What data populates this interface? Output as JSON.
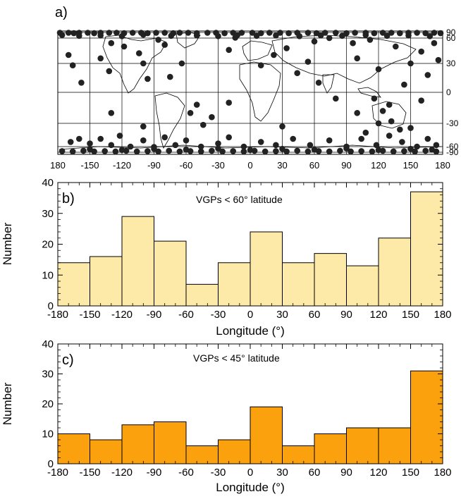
{
  "chart_data": [
    {
      "type": "scatter",
      "panel_label": "a)",
      "description_kind": "world map with VGP locations",
      "xlim": [
        -180,
        180
      ],
      "ylim": [
        -90,
        90
      ],
      "x_ticks": [
        "180",
        "-150",
        "-120",
        "-90",
        "-60",
        "-30",
        "0",
        "30",
        "60",
        "90",
        "120",
        "150",
        "180"
      ],
      "y_ticks": [
        {
          "value": 90,
          "label": "90"
        },
        {
          "value": 60,
          "label": "60"
        },
        {
          "value": 30,
          "label": "30"
        },
        {
          "value": 0,
          "label": "0"
        },
        {
          "value": -30,
          "label": "-30"
        },
        {
          "value": -60,
          "label": "-60"
        },
        {
          "value": -90,
          "label": "-90"
        }
      ],
      "marker_color": "#222222",
      "points": [
        [
          -178,
          88
        ],
        [
          -170,
          88
        ],
        [
          -165,
          86
        ],
        [
          -160,
          88
        ],
        [
          -152,
          88
        ],
        [
          -146,
          86
        ],
        [
          -140,
          88
        ],
        [
          -132,
          88
        ],
        [
          -125,
          88
        ],
        [
          -118,
          86
        ],
        [
          -110,
          88
        ],
        [
          -102,
          88
        ],
        [
          -96,
          86
        ],
        [
          -88,
          88
        ],
        [
          -80,
          88
        ],
        [
          -72,
          86
        ],
        [
          -66,
          88
        ],
        [
          -58,
          88
        ],
        [
          -50,
          86
        ],
        [
          -40,
          88
        ],
        [
          -32,
          88
        ],
        [
          -24,
          86
        ],
        [
          -16,
          88
        ],
        [
          -8,
          88
        ],
        [
          2,
          88
        ],
        [
          10,
          86
        ],
        [
          18,
          88
        ],
        [
          28,
          88
        ],
        [
          36,
          86
        ],
        [
          44,
          88
        ],
        [
          54,
          88
        ],
        [
          62,
          86
        ],
        [
          70,
          88
        ],
        [
          80,
          88
        ],
        [
          90,
          86
        ],
        [
          98,
          88
        ],
        [
          108,
          88
        ],
        [
          116,
          86
        ],
        [
          124,
          88
        ],
        [
          132,
          88
        ],
        [
          140,
          86
        ],
        [
          148,
          88
        ],
        [
          156,
          88
        ],
        [
          164,
          86
        ],
        [
          172,
          88
        ],
        [
          178,
          86
        ],
        [
          -176,
          76
        ],
        [
          -160,
          72
        ],
        [
          -140,
          74
        ],
        [
          -120,
          70
        ],
        [
          -100,
          78
        ],
        [
          -74,
          72
        ],
        [
          -50,
          74
        ],
        [
          -30,
          70
        ],
        [
          -12,
          76
        ],
        [
          6,
          72
        ],
        [
          24,
          74
        ],
        [
          46,
          70
        ],
        [
          66,
          74
        ],
        [
          86,
          72
        ],
        [
          108,
          76
        ],
        [
          128,
          72
        ],
        [
          148,
          74
        ],
        [
          168,
          70
        ],
        [
          -170,
          40
        ],
        [
          -166,
          28
        ],
        [
          -158,
          10
        ],
        [
          -140,
          36
        ],
        [
          -132,
          22
        ],
        [
          -130,
          54
        ],
        [
          -118,
          50
        ],
        [
          -104,
          42
        ],
        [
          -100,
          30
        ],
        [
          -96,
          14
        ],
        [
          -86,
          58
        ],
        [
          -80,
          52
        ],
        [
          -75,
          16
        ],
        [
          -64,
          30
        ],
        [
          -56,
          -20
        ],
        [
          -50,
          -12
        ],
        [
          -44,
          -32
        ],
        [
          -36,
          -24
        ],
        [
          -20,
          46
        ],
        [
          -14,
          62
        ],
        [
          10,
          28
        ],
        [
          22,
          40
        ],
        [
          34,
          48
        ],
        [
          44,
          20
        ],
        [
          54,
          32
        ],
        [
          60,
          56
        ],
        [
          64,
          10
        ],
        [
          74,
          60
        ],
        [
          80,
          -6
        ],
        [
          96,
          54
        ],
        [
          100,
          36
        ],
        [
          112,
          58
        ],
        [
          120,
          24
        ],
        [
          136,
          50
        ],
        [
          144,
          8
        ],
        [
          150,
          30
        ],
        [
          160,
          44
        ],
        [
          166,
          18
        ],
        [
          172,
          54
        ],
        [
          176,
          34
        ],
        [
          -168,
          -54
        ],
        [
          -160,
          -50
        ],
        [
          -150,
          -56
        ],
        [
          -140,
          -50
        ],
        [
          -130,
          -58
        ],
        [
          -122,
          -46
        ],
        [
          -112,
          -60
        ],
        [
          -100,
          -52
        ],
        [
          -90,
          -62
        ],
        [
          -80,
          -48
        ],
        [
          -70,
          -58
        ],
        [
          -60,
          -52
        ],
        [
          -46,
          -60
        ],
        [
          -30,
          -56
        ],
        [
          -20,
          -48
        ],
        [
          -6,
          -60
        ],
        [
          10,
          -54
        ],
        [
          24,
          -58
        ],
        [
          40,
          -50
        ],
        [
          56,
          -58
        ],
        [
          74,
          -52
        ],
        [
          90,
          -60
        ],
        [
          104,
          -50
        ],
        [
          118,
          -58
        ],
        [
          130,
          -46
        ],
        [
          142,
          -54
        ],
        [
          156,
          -60
        ],
        [
          166,
          -50
        ],
        [
          174,
          -58
        ],
        [
          -176,
          -84
        ],
        [
          -166,
          -86
        ],
        [
          -156,
          -82
        ],
        [
          -146,
          -86
        ],
        [
          -136,
          -84
        ],
        [
          -126,
          -86
        ],
        [
          -116,
          -82
        ],
        [
          -106,
          -86
        ],
        [
          -96,
          -84
        ],
        [
          -86,
          -86
        ],
        [
          -76,
          -82
        ],
        [
          -66,
          -86
        ],
        [
          -56,
          -84
        ],
        [
          -46,
          -86
        ],
        [
          -36,
          -82
        ],
        [
          -26,
          -86
        ],
        [
          -16,
          -84
        ],
        [
          -6,
          -86
        ],
        [
          4,
          -82
        ],
        [
          14,
          -86
        ],
        [
          24,
          -84
        ],
        [
          34,
          -86
        ],
        [
          44,
          -82
        ],
        [
          54,
          -86
        ],
        [
          64,
          -84
        ],
        [
          74,
          -86
        ],
        [
          84,
          -82
        ],
        [
          94,
          -86
        ],
        [
          104,
          -84
        ],
        [
          114,
          -86
        ],
        [
          124,
          -82
        ],
        [
          134,
          -86
        ],
        [
          144,
          -84
        ],
        [
          154,
          -86
        ],
        [
          164,
          -82
        ],
        [
          174,
          -86
        ],
        [
          -150,
          -74
        ],
        [
          -120,
          -78
        ],
        [
          -90,
          -72
        ],
        [
          -60,
          -76
        ],
        [
          -30,
          -70
        ],
        [
          0,
          -78
        ],
        [
          30,
          -72
        ],
        [
          60,
          -76
        ],
        [
          90,
          -70
        ],
        [
          120,
          -78
        ],
        [
          150,
          -72
        ],
        [
          170,
          -76
        ],
        [
          -130,
          -20
        ],
        [
          -100,
          -34
        ],
        [
          -20,
          -10
        ],
        [
          30,
          -34
        ],
        [
          100,
          -20
        ],
        [
          130,
          -12
        ],
        [
          150,
          -36
        ],
        [
          160,
          -8
        ],
        [
          120,
          -30
        ],
        [
          124,
          -18
        ],
        [
          108,
          -42
        ],
        [
          140,
          -38
        ],
        [
          116,
          -6
        ],
        [
          132,
          -28
        ]
      ]
    },
    {
      "type": "bar",
      "panel_label": "b)",
      "annotation": "VGPs < 60° latitude",
      "bin_edges": [
        -180,
        -150,
        -120,
        -90,
        -60,
        -30,
        0,
        30,
        60,
        90,
        120,
        150,
        180
      ],
      "values": [
        14,
        16,
        29,
        21,
        7,
        14,
        24,
        14,
        17,
        13,
        22,
        37
      ],
      "ylabel": "Number",
      "xlabel": "Longitude (°)",
      "ylim": [
        0,
        40
      ],
      "y_ticks": [
        "0",
        "10",
        "20",
        "30",
        "40"
      ],
      "x_ticks": [
        "-180",
        "-150",
        "-120",
        "-90",
        "-60",
        "-30",
        "0",
        "30",
        "60",
        "90",
        "120",
        "150",
        "180"
      ],
      "bar_color": "#fde9a8"
    },
    {
      "type": "bar",
      "panel_label": "c)",
      "annotation": "VGPs < 45° latitude",
      "bin_edges": [
        -180,
        -150,
        -120,
        -90,
        -60,
        -30,
        0,
        30,
        60,
        90,
        120,
        150,
        180
      ],
      "values": [
        10,
        8,
        13,
        14,
        6,
        8,
        19,
        6,
        10,
        12,
        12,
        31
      ],
      "ylabel": "Number",
      "xlabel": "Longitude (°)",
      "ylim": [
        0,
        40
      ],
      "y_ticks": [
        "0",
        "10",
        "20",
        "30",
        "40"
      ],
      "x_ticks": [
        "-180",
        "-150",
        "-120",
        "-90",
        "-60",
        "-30",
        "0",
        "30",
        "60",
        "90",
        "120",
        "150",
        "180"
      ],
      "bar_color": "#fba10e"
    }
  ]
}
